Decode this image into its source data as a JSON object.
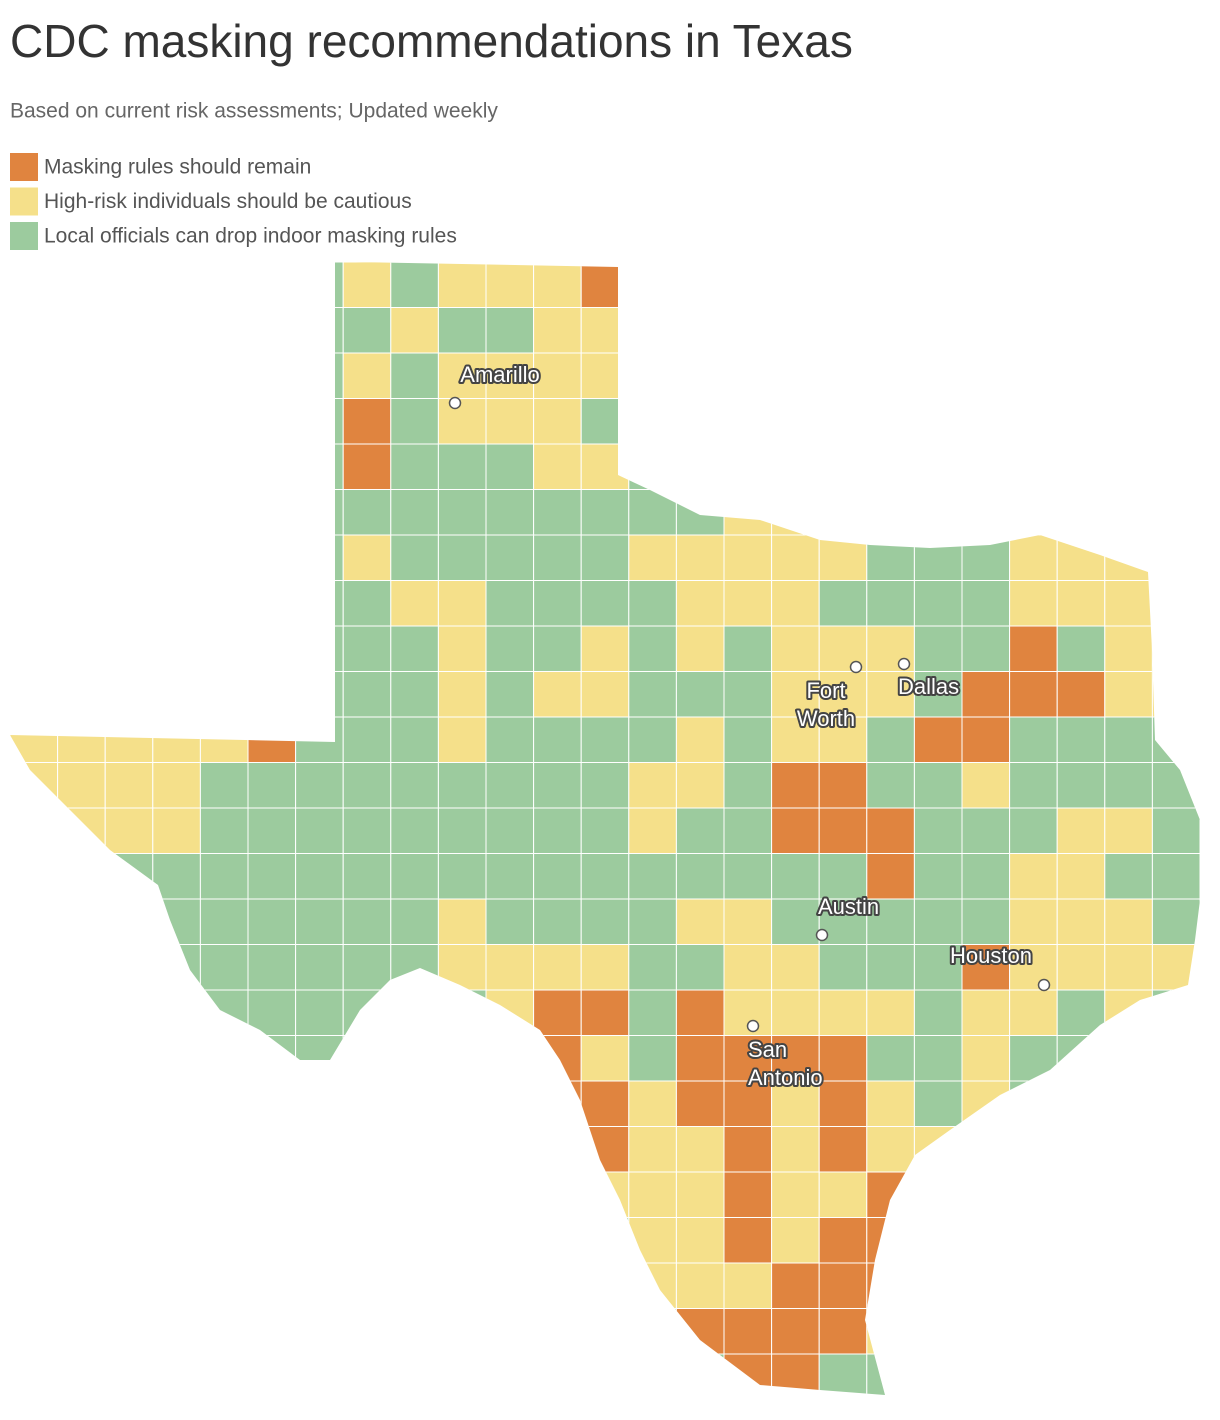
{
  "header": {
    "title": "CDC masking recommendations in Texas",
    "subtitle": "Based on current risk assessments; Updated weekly"
  },
  "legend": [
    {
      "label": "Masking rules should remain",
      "color": "#e0843f"
    },
    {
      "label": "High-risk individuals should be cautious",
      "color": "#f5e08a"
    },
    {
      "label": "Local officials can drop indoor masking rules",
      "color": "#9ccb9e"
    }
  ],
  "cities": [
    {
      "lines": [
        "Amarillo"
      ]
    },
    {
      "lines": [
        "Fort",
        "Worth"
      ]
    },
    {
      "lines": [
        "Dallas"
      ]
    },
    {
      "lines": [
        "Austin"
      ]
    },
    {
      "lines": [
        "Houston"
      ]
    },
    {
      "lines": [
        "San",
        "Antonio"
      ]
    }
  ]
}
